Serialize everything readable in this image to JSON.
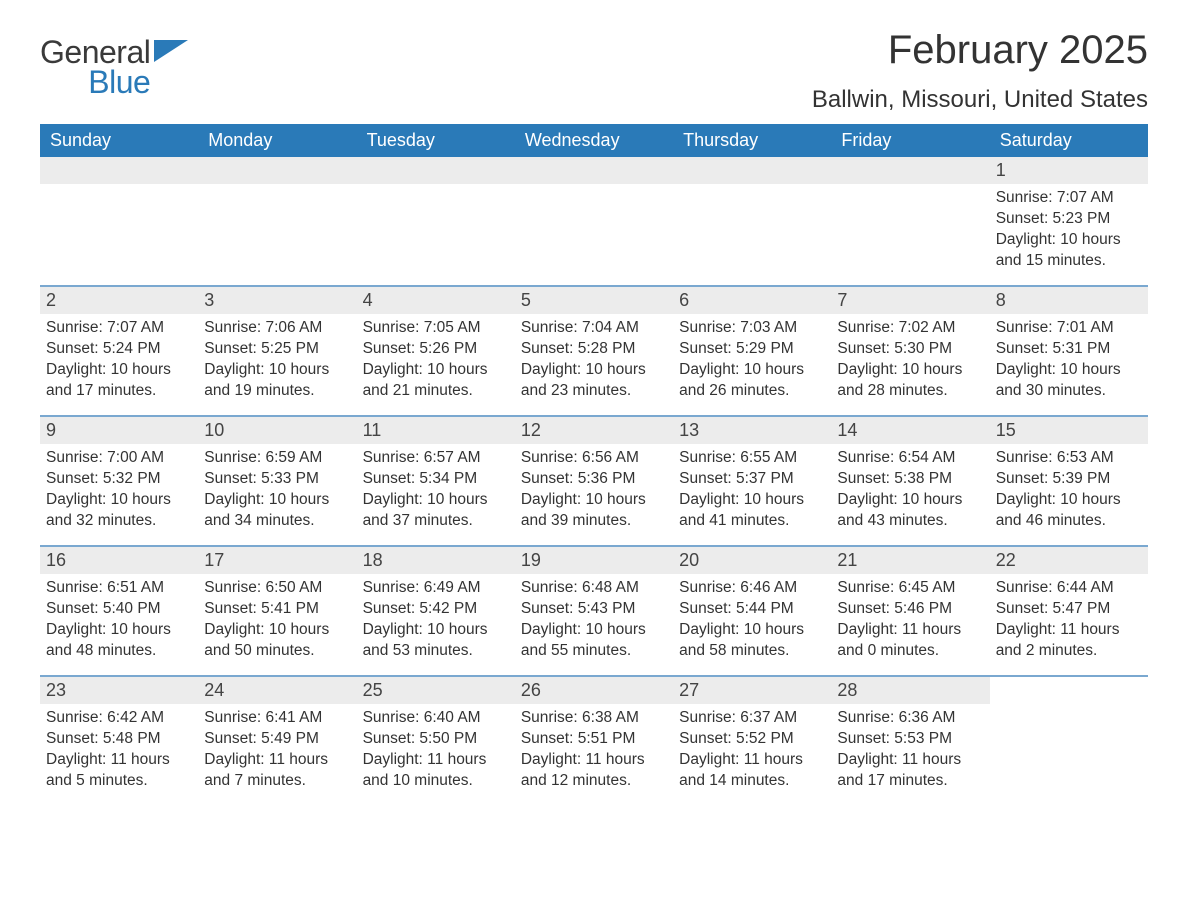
{
  "logo": {
    "text1": "General",
    "text2": "Blue",
    "mark_color": "#2a7ab8"
  },
  "title": "February 2025",
  "location": "Ballwin, Missouri, United States",
  "colors": {
    "header_bg": "#2a7ab8",
    "header_text": "#ffffff",
    "daynum_bg": "#ececec",
    "sep_line": "#7aa8d0",
    "body_text": "#333333",
    "page_bg": "#ffffff"
  },
  "typography": {
    "title_fontsize": 40,
    "location_fontsize": 24,
    "dayheader_fontsize": 18,
    "daynum_fontsize": 18,
    "body_fontsize": 15.5,
    "font_family": "Arial"
  },
  "day_headers": [
    "Sunday",
    "Monday",
    "Tuesday",
    "Wednesday",
    "Thursday",
    "Friday",
    "Saturday"
  ],
  "weeks": [
    [
      null,
      null,
      null,
      null,
      null,
      null,
      {
        "n": "1",
        "sunrise": "Sunrise: 7:07 AM",
        "sunset": "Sunset: 5:23 PM",
        "daylight": "Daylight: 10 hours and 15 minutes."
      }
    ],
    [
      {
        "n": "2",
        "sunrise": "Sunrise: 7:07 AM",
        "sunset": "Sunset: 5:24 PM",
        "daylight": "Daylight: 10 hours and 17 minutes."
      },
      {
        "n": "3",
        "sunrise": "Sunrise: 7:06 AM",
        "sunset": "Sunset: 5:25 PM",
        "daylight": "Daylight: 10 hours and 19 minutes."
      },
      {
        "n": "4",
        "sunrise": "Sunrise: 7:05 AM",
        "sunset": "Sunset: 5:26 PM",
        "daylight": "Daylight: 10 hours and 21 minutes."
      },
      {
        "n": "5",
        "sunrise": "Sunrise: 7:04 AM",
        "sunset": "Sunset: 5:28 PM",
        "daylight": "Daylight: 10 hours and 23 minutes."
      },
      {
        "n": "6",
        "sunrise": "Sunrise: 7:03 AM",
        "sunset": "Sunset: 5:29 PM",
        "daylight": "Daylight: 10 hours and 26 minutes."
      },
      {
        "n": "7",
        "sunrise": "Sunrise: 7:02 AM",
        "sunset": "Sunset: 5:30 PM",
        "daylight": "Daylight: 10 hours and 28 minutes."
      },
      {
        "n": "8",
        "sunrise": "Sunrise: 7:01 AM",
        "sunset": "Sunset: 5:31 PM",
        "daylight": "Daylight: 10 hours and 30 minutes."
      }
    ],
    [
      {
        "n": "9",
        "sunrise": "Sunrise: 7:00 AM",
        "sunset": "Sunset: 5:32 PM",
        "daylight": "Daylight: 10 hours and 32 minutes."
      },
      {
        "n": "10",
        "sunrise": "Sunrise: 6:59 AM",
        "sunset": "Sunset: 5:33 PM",
        "daylight": "Daylight: 10 hours and 34 minutes."
      },
      {
        "n": "11",
        "sunrise": "Sunrise: 6:57 AM",
        "sunset": "Sunset: 5:34 PM",
        "daylight": "Daylight: 10 hours and 37 minutes."
      },
      {
        "n": "12",
        "sunrise": "Sunrise: 6:56 AM",
        "sunset": "Sunset: 5:36 PM",
        "daylight": "Daylight: 10 hours and 39 minutes."
      },
      {
        "n": "13",
        "sunrise": "Sunrise: 6:55 AM",
        "sunset": "Sunset: 5:37 PM",
        "daylight": "Daylight: 10 hours and 41 minutes."
      },
      {
        "n": "14",
        "sunrise": "Sunrise: 6:54 AM",
        "sunset": "Sunset: 5:38 PM",
        "daylight": "Daylight: 10 hours and 43 minutes."
      },
      {
        "n": "15",
        "sunrise": "Sunrise: 6:53 AM",
        "sunset": "Sunset: 5:39 PM",
        "daylight": "Daylight: 10 hours and 46 minutes."
      }
    ],
    [
      {
        "n": "16",
        "sunrise": "Sunrise: 6:51 AM",
        "sunset": "Sunset: 5:40 PM",
        "daylight": "Daylight: 10 hours and 48 minutes."
      },
      {
        "n": "17",
        "sunrise": "Sunrise: 6:50 AM",
        "sunset": "Sunset: 5:41 PM",
        "daylight": "Daylight: 10 hours and 50 minutes."
      },
      {
        "n": "18",
        "sunrise": "Sunrise: 6:49 AM",
        "sunset": "Sunset: 5:42 PM",
        "daylight": "Daylight: 10 hours and 53 minutes."
      },
      {
        "n": "19",
        "sunrise": "Sunrise: 6:48 AM",
        "sunset": "Sunset: 5:43 PM",
        "daylight": "Daylight: 10 hours and 55 minutes."
      },
      {
        "n": "20",
        "sunrise": "Sunrise: 6:46 AM",
        "sunset": "Sunset: 5:44 PM",
        "daylight": "Daylight: 10 hours and 58 minutes."
      },
      {
        "n": "21",
        "sunrise": "Sunrise: 6:45 AM",
        "sunset": "Sunset: 5:46 PM",
        "daylight": "Daylight: 11 hours and 0 minutes."
      },
      {
        "n": "22",
        "sunrise": "Sunrise: 6:44 AM",
        "sunset": "Sunset: 5:47 PM",
        "daylight": "Daylight: 11 hours and 2 minutes."
      }
    ],
    [
      {
        "n": "23",
        "sunrise": "Sunrise: 6:42 AM",
        "sunset": "Sunset: 5:48 PM",
        "daylight": "Daylight: 11 hours and 5 minutes."
      },
      {
        "n": "24",
        "sunrise": "Sunrise: 6:41 AM",
        "sunset": "Sunset: 5:49 PM",
        "daylight": "Daylight: 11 hours and 7 minutes."
      },
      {
        "n": "25",
        "sunrise": "Sunrise: 6:40 AM",
        "sunset": "Sunset: 5:50 PM",
        "daylight": "Daylight: 11 hours and 10 minutes."
      },
      {
        "n": "26",
        "sunrise": "Sunrise: 6:38 AM",
        "sunset": "Sunset: 5:51 PM",
        "daylight": "Daylight: 11 hours and 12 minutes."
      },
      {
        "n": "27",
        "sunrise": "Sunrise: 6:37 AM",
        "sunset": "Sunset: 5:52 PM",
        "daylight": "Daylight: 11 hours and 14 minutes."
      },
      {
        "n": "28",
        "sunrise": "Sunrise: 6:36 AM",
        "sunset": "Sunset: 5:53 PM",
        "daylight": "Daylight: 11 hours and 17 minutes."
      },
      null
    ]
  ]
}
